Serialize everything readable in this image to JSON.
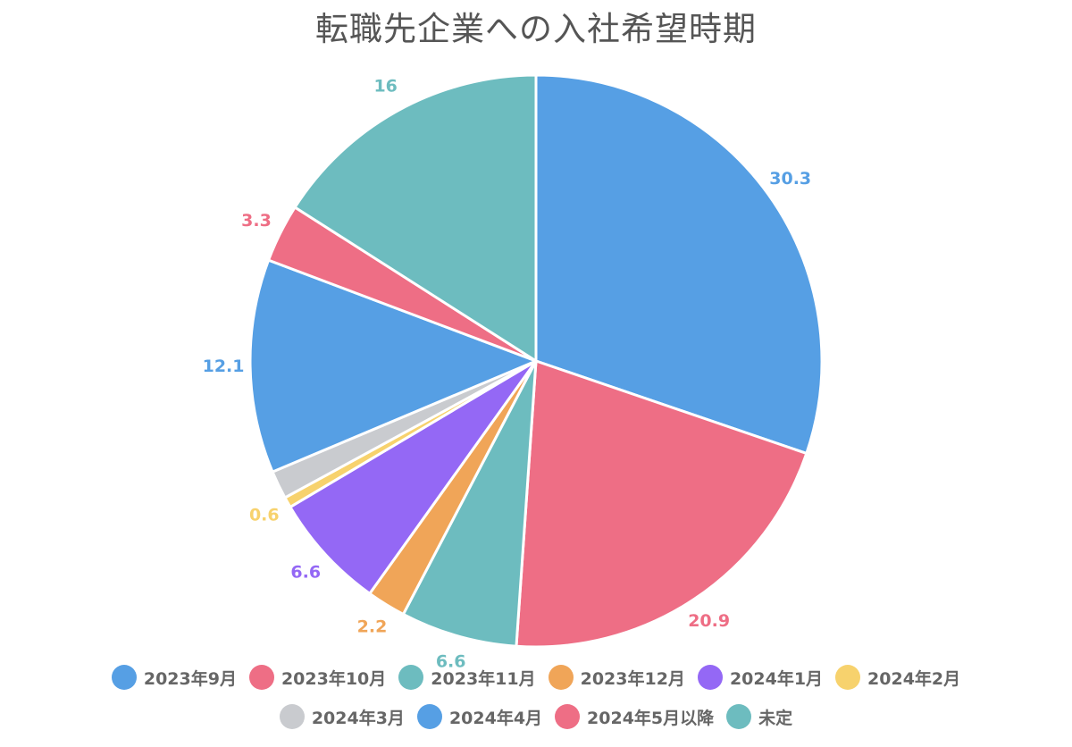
{
  "chart_data": {
    "type": "pie",
    "title": "転職先企業への入社希望時期",
    "categories": [
      "2023年9月",
      "2023年10月",
      "2023年11月",
      "2023年12月",
      "2024年1月",
      "2024年2月",
      "2024年3月",
      "2024年4月",
      "2024年5月以降",
      "未定"
    ],
    "values": [
      30.3,
      20.9,
      6.6,
      2.2,
      6.6,
      0.6,
      1.6,
      12.1,
      3.3,
      16
    ],
    "value_labels": [
      "30.3",
      "20.9",
      "6.6",
      "2.2",
      "6.6",
      "0.6",
      "",
      "12.1",
      "3.3",
      "16"
    ],
    "colors": [
      "#569fe4",
      "#ee6e85",
      "#6dbcbf",
      "#f0a558",
      "#9468f5",
      "#f7d26d",
      "#c9cbcf",
      "#569fe4",
      "#ee6e85",
      "#6dbcbf"
    ],
    "legend_position": "bottom"
  }
}
